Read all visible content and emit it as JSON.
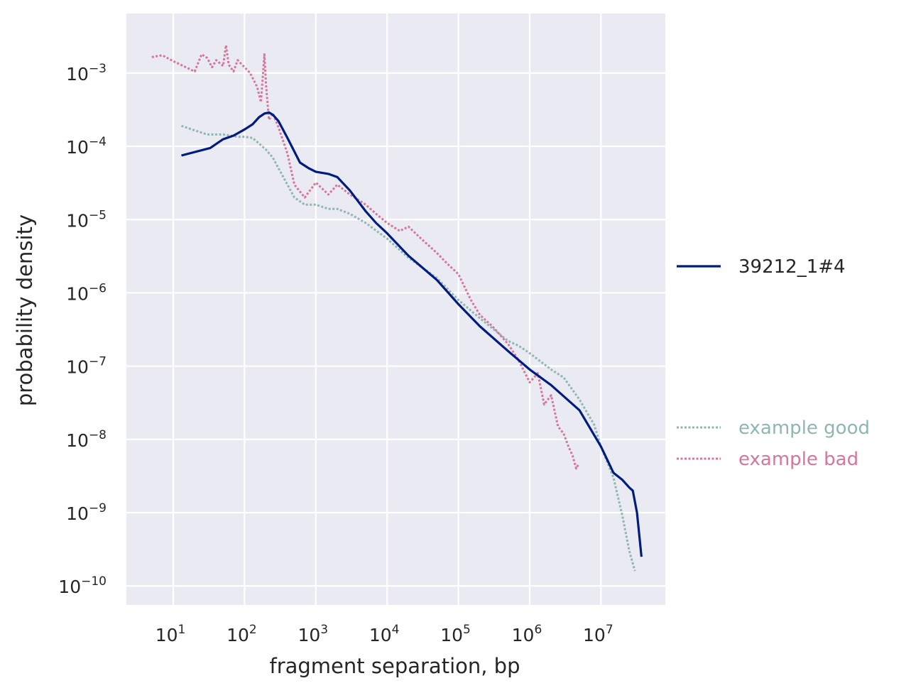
{
  "chart_data": {
    "type": "line",
    "xscale": "log",
    "yscale": "log",
    "xlabel": "fragment separation, bp",
    "ylabel": "probability density",
    "xlim": [
      2.2,
      80000000
    ],
    "ylim": [
      5.5e-11,
      0.0065
    ],
    "grid": true,
    "background": "#eaeaf2",
    "legend_placement": "right",
    "x_ticks": [
      {
        "base": "10",
        "exp": "1",
        "value": 10
      },
      {
        "base": "10",
        "exp": "2",
        "value": 100
      },
      {
        "base": "10",
        "exp": "3",
        "value": 1000
      },
      {
        "base": "10",
        "exp": "4",
        "value": 10000
      },
      {
        "base": "10",
        "exp": "5",
        "value": 100000
      },
      {
        "base": "10",
        "exp": "6",
        "value": 1000000
      },
      {
        "base": "10",
        "exp": "7",
        "value": 10000000
      }
    ],
    "y_ticks": [
      {
        "base": "10",
        "exp": "−3",
        "value": 0.001
      },
      {
        "base": "10",
        "exp": "−4",
        "value": 0.0001
      },
      {
        "base": "10",
        "exp": "−5",
        "value": 1e-05
      },
      {
        "base": "10",
        "exp": "−6",
        "value": 1e-06
      },
      {
        "base": "10",
        "exp": "−7",
        "value": 1e-07
      },
      {
        "base": "10",
        "exp": "−8",
        "value": 1e-08
      },
      {
        "base": "10",
        "exp": "−9",
        "value": 1e-09
      },
      {
        "base": "10",
        "exp": "−10",
        "value": 1e-10
      }
    ],
    "series": [
      {
        "name": "39212_1#4",
        "color": "#001c7f",
        "style": "solid",
        "x": [
          13,
          33,
          50,
          70,
          100,
          130,
          160,
          190,
          220,
          250,
          300,
          400,
          600,
          800,
          1000,
          1500,
          2000,
          3000,
          5000,
          7000,
          10000,
          20000,
          50000,
          100000,
          200000,
          500000,
          1000000,
          2000000,
          5000000,
          10000000,
          15000000,
          20000000,
          25000000,
          28000000,
          32000000,
          37000000
        ],
        "y": [
          7.5e-05,
          9.5e-05,
          0.000125,
          0.00014,
          0.00017,
          0.0002,
          0.00025,
          0.00028,
          0.00029,
          0.00027,
          0.00022,
          0.00013,
          6e-05,
          5e-05,
          4.5e-05,
          4.2e-05,
          3.8e-05,
          2.5e-05,
          1.3e-05,
          9e-06,
          6.5e-06,
          3.2e-06,
          1.5e-06,
          7e-07,
          3.5e-07,
          1.6e-07,
          9e-08,
          5.5e-08,
          2.5e-08,
          8e-09,
          3.5e-09,
          2.8e-09,
          2.2e-09,
          2e-09,
          1e-09,
          2.5e-10
        ]
      },
      {
        "name": "example good",
        "color": "#8fb6b2",
        "style": "dotted",
        "x": [
          13,
          20,
          30,
          50,
          80,
          100,
          130,
          200,
          250,
          300,
          400,
          500,
          700,
          1000,
          1500,
          2000,
          3000,
          5000,
          10000,
          20000,
          50000,
          100000,
          200000,
          500000,
          700000,
          1000000,
          2000000,
          3000000,
          5000000,
          8000000,
          10000000,
          15000000,
          20000000,
          25000000,
          30000000
        ],
        "y": [
          0.00019,
          0.000165,
          0.000145,
          0.000145,
          0.000135,
          0.000135,
          0.00013,
          9e-05,
          7e-05,
          5e-05,
          3e-05,
          2e-05,
          1.6e-05,
          1.6e-05,
          1.4e-05,
          1.4e-05,
          1.2e-05,
          9e-06,
          5.5e-06,
          3e-06,
          1.6e-06,
          8e-07,
          4.5e-07,
          2.2e-07,
          1.9e-07,
          1.5e-07,
          9e-08,
          7e-08,
          3.5e-08,
          1.6e-08,
          8e-09,
          3e-09,
          9e-10,
          3e-10,
          1.6e-10
        ]
      },
      {
        "name": "example bad",
        "color": "#d5769c",
        "style": "dotted",
        "x": [
          5,
          7,
          10,
          15,
          20,
          25,
          30,
          35,
          40,
          50,
          55,
          60,
          70,
          80,
          100,
          120,
          150,
          170,
          190,
          200,
          220,
          250,
          300,
          400,
          500,
          700,
          1000,
          1500,
          2000,
          3000,
          5000,
          7000,
          10000,
          15000,
          20000,
          30000,
          50000,
          70000,
          100000,
          150000,
          200000,
          300000,
          500000,
          700000,
          1000000,
          1300000,
          1600000,
          2000000,
          2500000,
          3000000,
          3500000,
          4000000,
          4500000,
          4800000
        ],
        "y": [
          0.00165,
          0.00175,
          0.00145,
          0.0012,
          0.00105,
          0.0018,
          0.0016,
          0.0012,
          0.0015,
          0.00125,
          0.0024,
          0.0013,
          0.00105,
          0.0015,
          0.0012,
          0.001,
          0.00065,
          0.0004,
          0.0018,
          0.0007,
          0.00023,
          0.00028,
          0.00018,
          8e-05,
          3e-05,
          2e-05,
          3.2e-05,
          2.2e-05,
          3e-05,
          2.2e-05,
          1.6e-05,
          1.2e-05,
          9e-06,
          7e-06,
          8e-06,
          5.5e-06,
          3.5e-06,
          2.5e-06,
          1.8e-06,
          8e-07,
          5e-07,
          3.5e-07,
          2e-07,
          1.2e-07,
          6e-08,
          8e-08,
          3e-08,
          4e-08,
          1.5e-08,
          1.2e-08,
          8e-09,
          6e-09,
          4e-09,
          4.5e-09
        ]
      }
    ]
  }
}
